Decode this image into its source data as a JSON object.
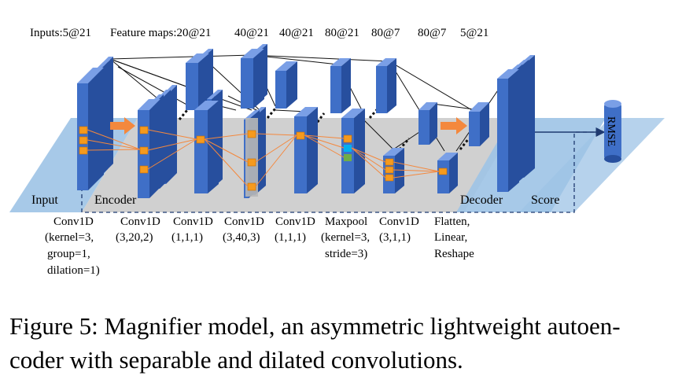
{
  "header": {
    "inputs": "Inputs:5@21",
    "feature_maps": "Feature maps:20@21",
    "dims": [
      "20@21",
      "40@21",
      "40@21",
      "80@21",
      "80@7",
      "80@7",
      "5@21"
    ]
  },
  "regions": {
    "input": "Input",
    "encoder": "Encoder",
    "decoder": "Decoder",
    "score": "Score",
    "rmse": "RMSE"
  },
  "layers": [
    {
      "lines": [
        "Conv1D",
        "(kernel=3,",
        "group=1,",
        "dilation=1)"
      ]
    },
    {
      "lines": [
        "Conv1D",
        "(3,20,2)"
      ]
    },
    {
      "lines": [
        "Conv1D",
        "(1,1,1)"
      ]
    },
    {
      "lines": [
        "Conv1D",
        "(3,40,3)"
      ]
    },
    {
      "lines": [
        "Conv1D",
        "(1,1,1)"
      ]
    },
    {
      "lines": [
        "Maxpool",
        "(kernel=3,",
        "stride=3)"
      ]
    },
    {
      "lines": [
        "Conv1D",
        "(3,1,1)"
      ]
    },
    {
      "lines": [
        "Flatten,",
        "Linear,",
        "Reshape"
      ]
    }
  ],
  "caption": {
    "line1": "Figure 5: Magnifier model, an asymmetric lightweight autoen-",
    "line2": "coder with separable and dilated convolutions."
  },
  "colors": {
    "block_front": "#3f6fc7",
    "block_side": "#274f9e",
    "block_top": "#7a9fe6",
    "plane_blue": "#9dc3e6",
    "plane_gray": "#c8c8c8",
    "kernel_orange": "#f59a1e",
    "arrow_orange": "#f4883d",
    "cyan": "#00b0f0",
    "green": "#70ad47"
  }
}
